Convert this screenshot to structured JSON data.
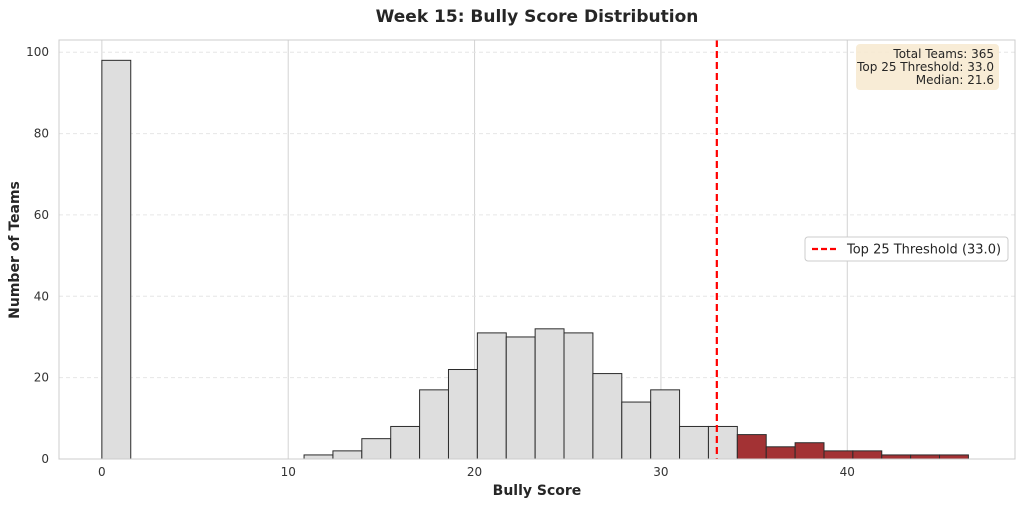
{
  "chart_data": {
    "type": "bar",
    "title": "Week 15: Bully Score Distribution",
    "xlabel": "Bully Score",
    "ylabel": "Number of Teams",
    "xlim": [
      -2.3,
      49.0
    ],
    "ylim": [
      0,
      103
    ],
    "xticks": [
      0,
      10,
      20,
      30,
      40
    ],
    "yticks": [
      0,
      20,
      40,
      60,
      80,
      100
    ],
    "grid": true,
    "bin_width": 1.55,
    "bins": [
      {
        "start": 0.0,
        "value": 98,
        "highlight": false
      },
      {
        "start": 10.85,
        "value": 1,
        "highlight": false
      },
      {
        "start": 12.4,
        "value": 2,
        "highlight": false
      },
      {
        "start": 13.95,
        "value": 5,
        "highlight": false
      },
      {
        "start": 15.5,
        "value": 8,
        "highlight": false
      },
      {
        "start": 17.05,
        "value": 17,
        "highlight": false
      },
      {
        "start": 18.6,
        "value": 22,
        "highlight": false
      },
      {
        "start": 20.15,
        "value": 31,
        "highlight": false
      },
      {
        "start": 21.7,
        "value": 30,
        "highlight": false
      },
      {
        "start": 23.25,
        "value": 32,
        "highlight": false
      },
      {
        "start": 24.8,
        "value": 31,
        "highlight": false
      },
      {
        "start": 26.35,
        "value": 21,
        "highlight": false
      },
      {
        "start": 27.9,
        "value": 14,
        "highlight": false
      },
      {
        "start": 29.45,
        "value": 17,
        "highlight": false
      },
      {
        "start": 31.0,
        "value": 8,
        "highlight": false
      },
      {
        "start": 32.55,
        "value": 8,
        "highlight": false
      },
      {
        "start": 34.1,
        "value": 6,
        "highlight": true
      },
      {
        "start": 35.65,
        "value": 3,
        "highlight": true
      },
      {
        "start": 37.2,
        "value": 4,
        "highlight": true
      },
      {
        "start": 38.75,
        "value": 2,
        "highlight": true
      },
      {
        "start": 40.3,
        "value": 2,
        "highlight": true
      },
      {
        "start": 41.85,
        "value": 1,
        "highlight": true
      },
      {
        "start": 43.4,
        "value": 1,
        "highlight": true
      },
      {
        "start": 44.95,
        "value": 1,
        "highlight": true
      }
    ],
    "threshold": {
      "value": 33.0,
      "label": "Top 25 Threshold (33.0)",
      "color": "#ff0000"
    },
    "legend_position": "center-right",
    "info_box": {
      "lines": [
        "Total Teams: 365",
        "Top 25 Threshold: 33.0",
        "Median: 21.6"
      ],
      "position": "top-right",
      "background": "#f7e9cf"
    },
    "colors": {
      "normal_fill": "#dedede",
      "highlight_fill": "#a33234",
      "bar_edge": "#2b2b2b",
      "grid": "#d3d3d3",
      "axes_border": "#cccccc"
    }
  }
}
